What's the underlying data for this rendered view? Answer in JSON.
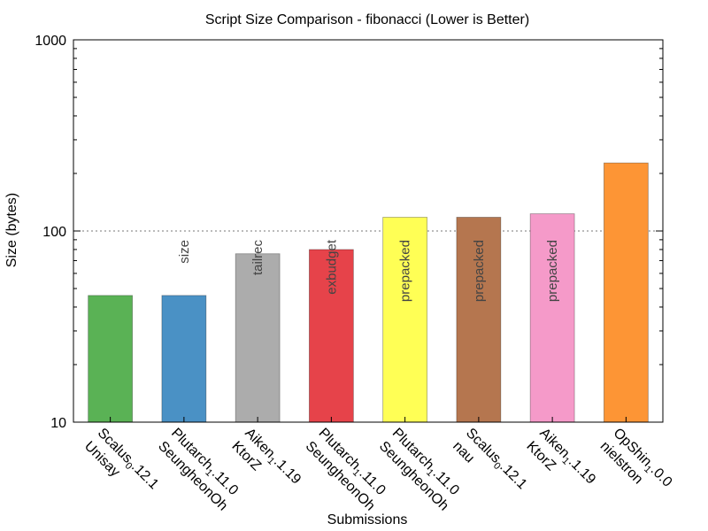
{
  "chart_data": {
    "type": "bar",
    "title": "Script Size Comparison - fibonacci (Lower is Better)",
    "xlabel": "Submissions",
    "ylabel": "Size (bytes)",
    "yscale": "log",
    "ylim": [
      10,
      1000
    ],
    "yticks": [
      "10",
      "100",
      "1000"
    ],
    "reference_line": 100,
    "bars": [
      {
        "name": "Scalus",
        "sub": "0",
        "version": ".12.1",
        "author": "Unisay",
        "value": 46,
        "color": "#5ab255",
        "annotation": ""
      },
      {
        "name": "Plutarch",
        "sub": "1",
        "version": ".11.0",
        "author": "SeungheonOh",
        "value": 46,
        "color": "#4a91c5",
        "annotation": "size"
      },
      {
        "name": "Aiken",
        "sub": "1",
        "version": ".1.19",
        "author": "KtorZ",
        "value": 76,
        "color": "#acacac",
        "annotation": "tailrec"
      },
      {
        "name": "Plutarch",
        "sub": "1",
        "version": ".11.0",
        "author": "SeungheonOh",
        "value": 80,
        "color": "#e6434a",
        "annotation": "exbudget"
      },
      {
        "name": "Plutarch",
        "sub": "1",
        "version": ".11.0",
        "author": "SeungheonOh",
        "value": 118,
        "color": "#ffff55",
        "annotation": "prepacked"
      },
      {
        "name": "Scalus",
        "sub": "0",
        "version": ".12.1",
        "author": "nau",
        "value": 118,
        "color": "#b5764f",
        "annotation": "prepacked"
      },
      {
        "name": "Aiken",
        "sub": "1",
        "version": ".1.19",
        "author": "KtorZ",
        "value": 123,
        "color": "#f59ac9",
        "annotation": "prepacked"
      },
      {
        "name": "OpShin",
        "sub": "1",
        "version": ".0.0",
        "author": "nielstron",
        "value": 227,
        "color": "#fd9535",
        "annotation": ""
      }
    ]
  }
}
